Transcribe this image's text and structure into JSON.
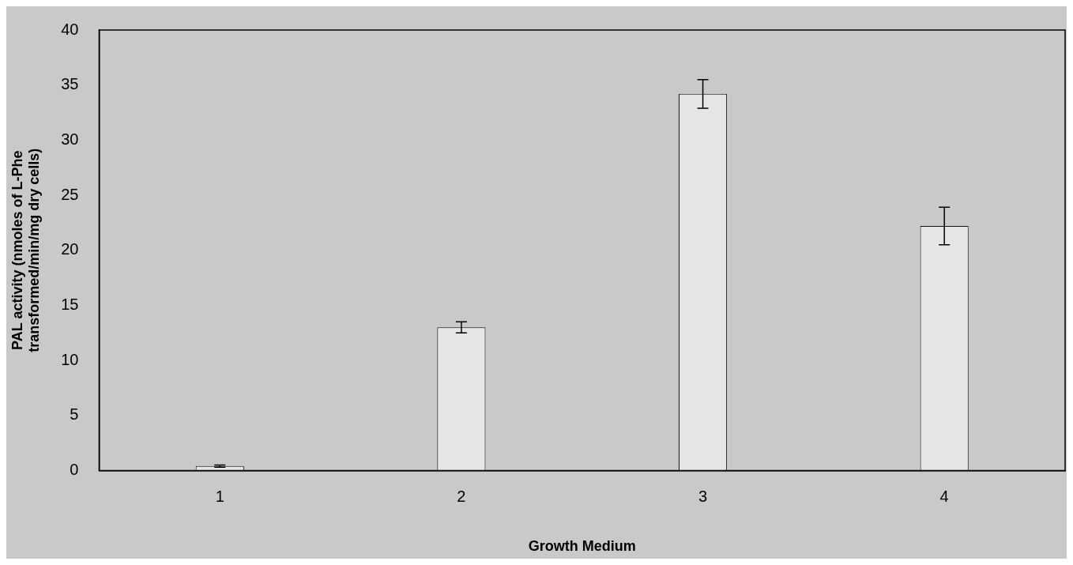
{
  "chart_data": {
    "type": "bar",
    "xlabel": "Growth Medium",
    "ylabel": "PAL activity (nmoles of L-Phe transformed/min/mg dry cells)",
    "categories": [
      "1",
      "2",
      "3",
      "4"
    ],
    "values": [
      0.4,
      13,
      34.2,
      22.2
    ],
    "errors": [
      0.1,
      0.5,
      1.3,
      1.7
    ],
    "color": "#e6e6e6",
    "ylim": [
      0,
      40
    ],
    "yticks": [
      0,
      5,
      10,
      15,
      20,
      25,
      30,
      35,
      40
    ],
    "grid": false,
    "legend": false
  }
}
